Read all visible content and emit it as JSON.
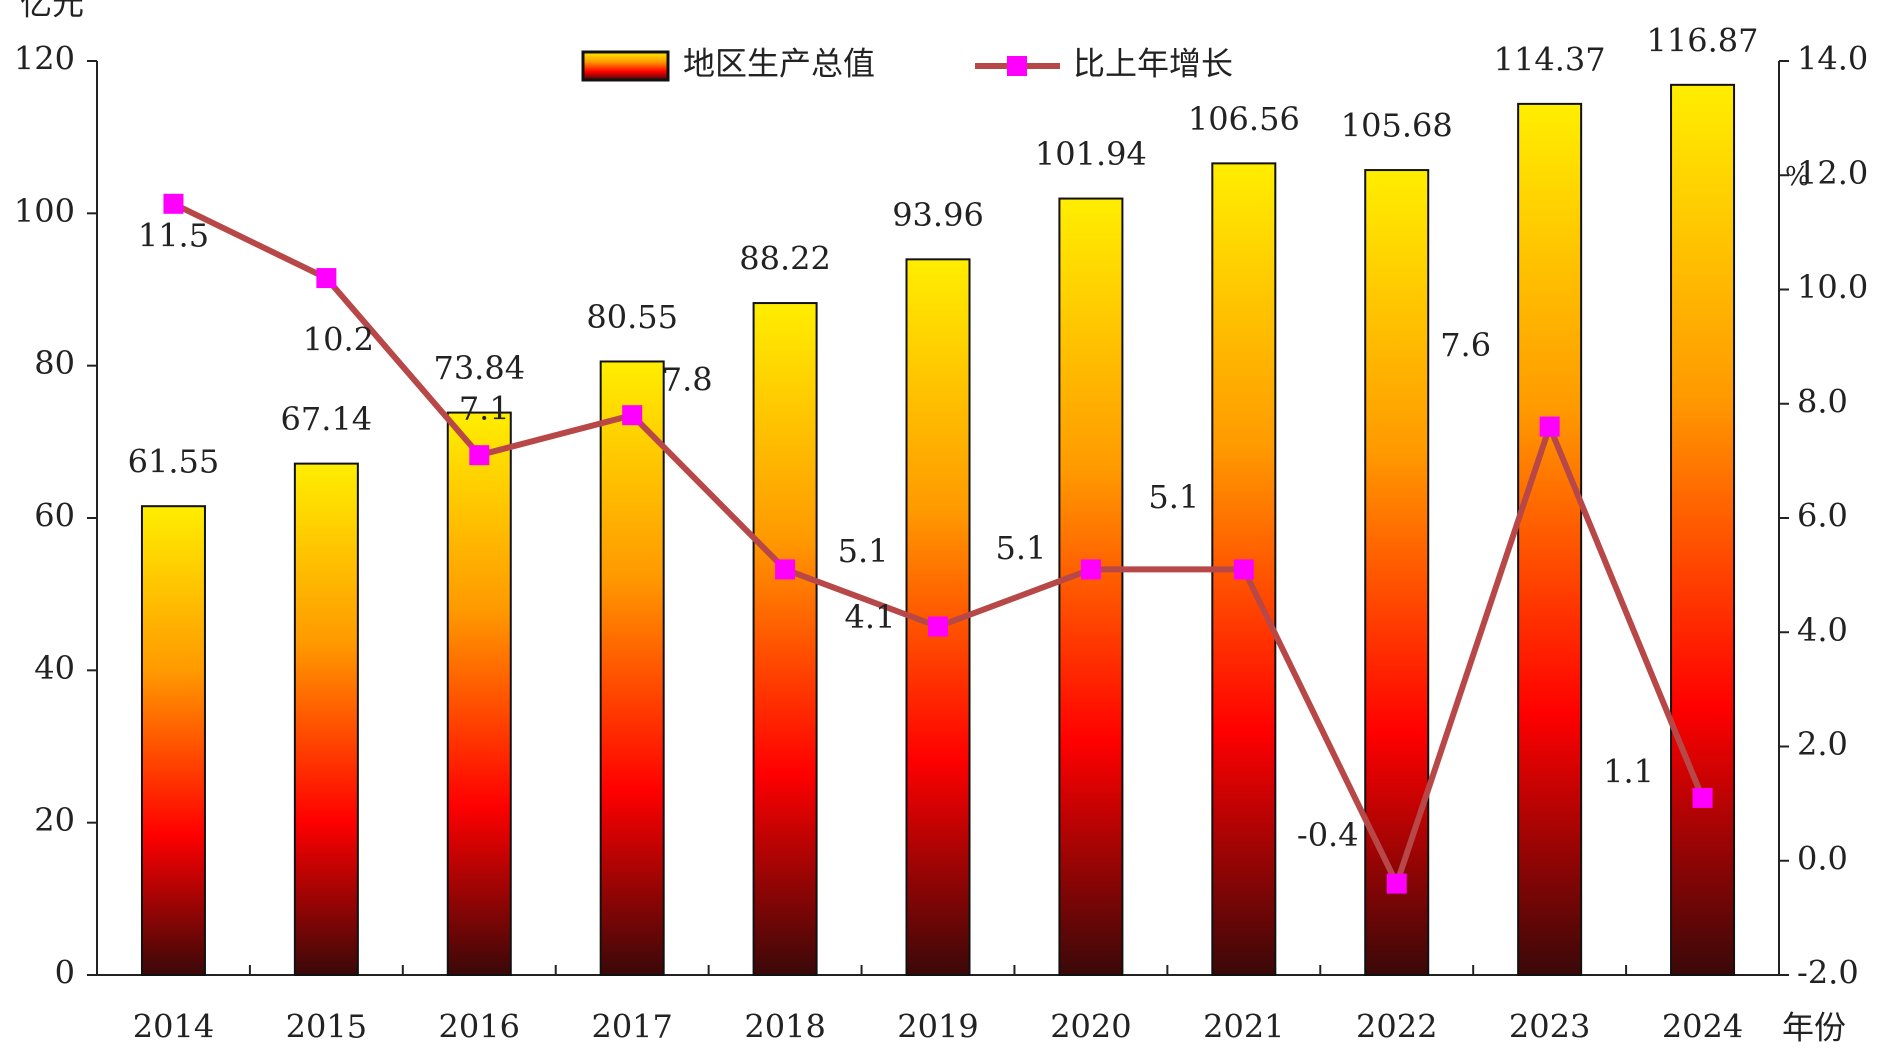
{
  "chart_data": {
    "type": "bar",
    "y_label": "亿元",
    "y2_label": "%",
    "x_label": "年份",
    "categories": [
      "2014",
      "2015",
      "2016",
      "2017",
      "2018",
      "2019",
      "2020",
      "2021",
      "2022",
      "2023",
      "2024"
    ],
    "series": [
      {
        "name": "地区生产总值",
        "type": "bar",
        "color": "#ff0000",
        "gradient": [
          "#3a0808",
          "#ff0000",
          "#ff9a00",
          "#ffee00"
        ],
        "values": [
          61.55,
          67.14,
          73.84,
          80.55,
          88.22,
          93.96,
          101.94,
          106.56,
          105.68,
          114.37,
          116.87
        ]
      },
      {
        "name": "比上年增长",
        "type": "line",
        "axis": "y2",
        "color": "#b84848",
        "marker_color": "#ff00ff",
        "values": [
          11.5,
          10.2,
          7.1,
          7.8,
          5.1,
          4.1,
          5.1,
          5.1,
          -0.4,
          7.6,
          1.1
        ]
      }
    ],
    "ylim": [
      0,
      120
    ],
    "yticks": [
      0,
      20,
      40,
      60,
      80,
      100,
      120
    ],
    "y2lim": [
      -2,
      14
    ],
    "y2ticks": [
      {
        "value": -2,
        "label": "-2.0"
      },
      {
        "value": 0,
        "label": "0.0"
      },
      {
        "value": 2,
        "label": "2.0"
      },
      {
        "value": 4,
        "label": "4.0"
      },
      {
        "value": 6,
        "label": "6.0"
      },
      {
        "value": 8,
        "label": "8.0"
      },
      {
        "value": 10,
        "label": "10.0"
      },
      {
        "value": 12,
        "label": "12.0"
      },
      {
        "value": 14,
        "label": "14.0"
      }
    ],
    "legend": "top"
  }
}
